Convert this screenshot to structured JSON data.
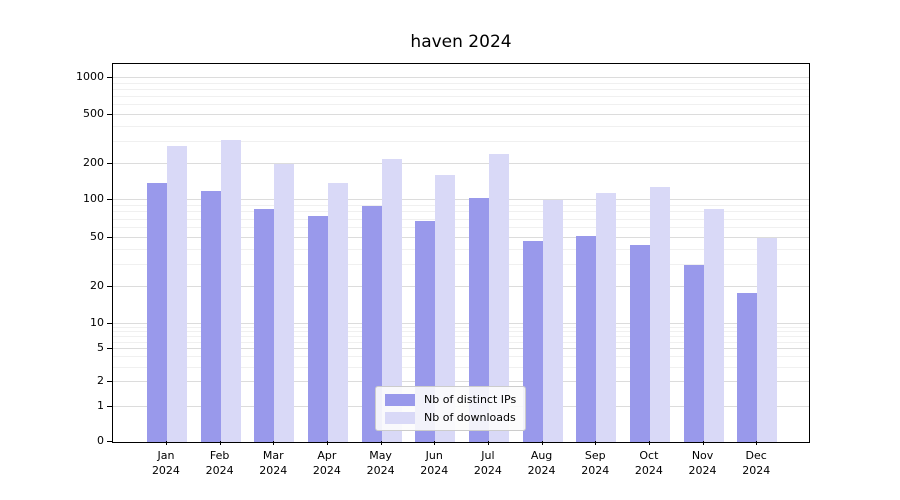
{
  "chart_data": {
    "type": "bar",
    "title": "haven 2024",
    "categories": [
      "Jan 2024",
      "Feb 2024",
      "Mar 2024",
      "Apr 2024",
      "May 2024",
      "Jun 2024",
      "Jul 2024",
      "Aug 2024",
      "Sep 2024",
      "Oct 2024",
      "Nov 2024",
      "Dec 2024"
    ],
    "series": [
      {
        "name": "Nb of distinct IPs",
        "color": "#9999eb",
        "values": [
          140,
          120,
          85,
          75,
          90,
          68,
          105,
          47,
          52,
          44,
          30,
          18
        ]
      },
      {
        "name": "Nb of downloads",
        "color": "#d9d9f7",
        "values": [
          280,
          310,
          200,
          140,
          220,
          160,
          240,
          100,
          115,
          130,
          85,
          50
        ]
      }
    ],
    "yscale": "symlog",
    "y_ticks": [
      0,
      1,
      2,
      5,
      10,
      20,
      50,
      100,
      200,
      500,
      1000
    ],
    "ylim": [
      0,
      1400
    ],
    "xlabel": "",
    "ylabel": "",
    "grid": true,
    "legend_position": "lower center"
  },
  "colors": {
    "axis": "#000000",
    "grid_major": "#dcdcdc",
    "grid_minor": "#f0f0f0",
    "background": "#ffffff",
    "legend_border": "#cccccc"
  }
}
